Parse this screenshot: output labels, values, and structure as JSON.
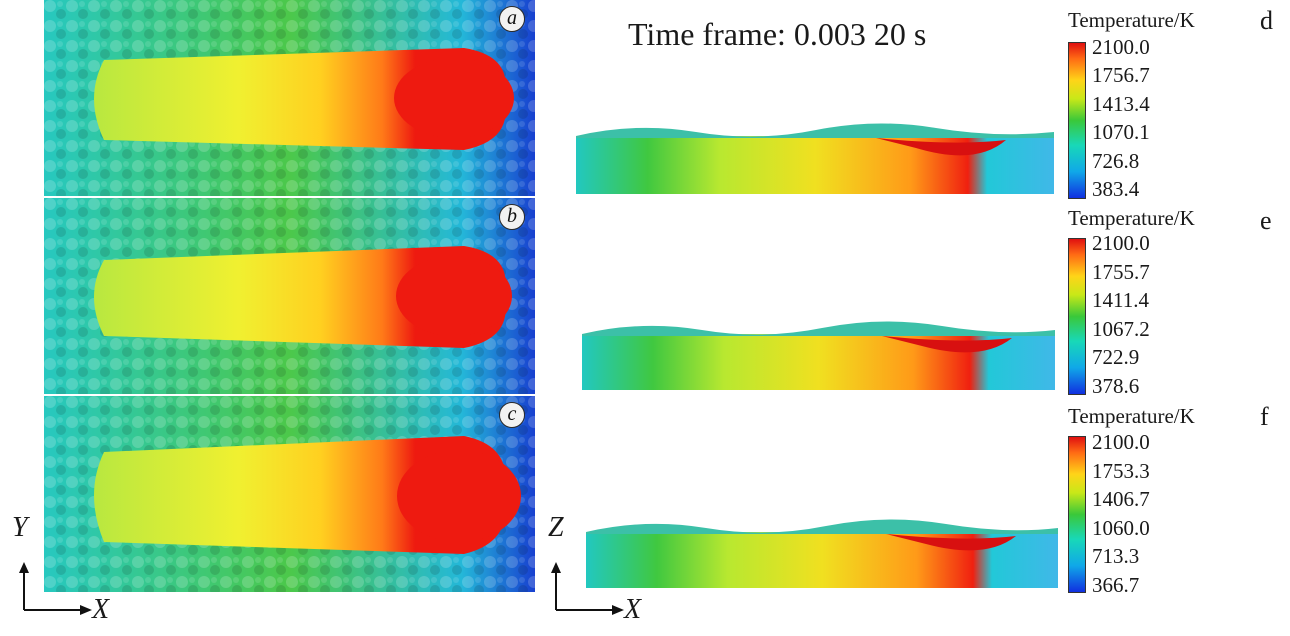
{
  "time_frame": "Time frame: 0.003 20 s",
  "panels_top": [
    {
      "letter": "a"
    },
    {
      "letter": "b"
    },
    {
      "letter": "c"
    }
  ],
  "colorbars": [
    {
      "letter": "d",
      "title": "Temperature/K",
      "ticks": [
        "2100.0",
        "1756.7",
        "1413.4",
        "1070.1",
        "726.8",
        "383.4"
      ]
    },
    {
      "letter": "e",
      "title": "Temperature/K",
      "ticks": [
        "2100.0",
        "1755.7",
        "1411.4",
        "1067.2",
        "722.9",
        "378.6"
      ]
    },
    {
      "letter": "f",
      "title": "Temperature/K",
      "ticks": [
        "2100.0",
        "1753.3",
        "1406.7",
        "1060.0",
        "713.3",
        "366.7"
      ]
    }
  ],
  "axes_left": {
    "vertical": "Y",
    "horizontal": "X"
  },
  "axes_right": {
    "vertical": "Z",
    "horizontal": "X"
  },
  "colors": {
    "hot": "#e81010",
    "warm": "#ff8a1a",
    "mid": "#e6e620",
    "green": "#3ac83a",
    "cool": "#18c8c8",
    "cold": "#1030d8"
  }
}
